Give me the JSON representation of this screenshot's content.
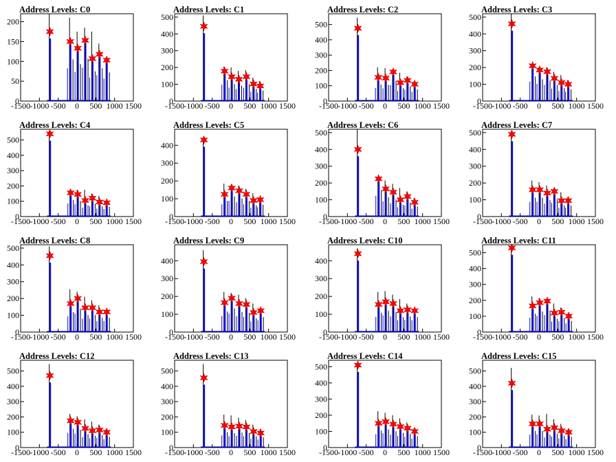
{
  "chart_data": [
    {
      "title": "Address Levels: C0",
      "type": "bar",
      "xlim": [
        -1500,
        1500
      ],
      "ylim": [
        0,
        220
      ],
      "yticks": [
        0,
        50,
        100,
        150,
        200
      ],
      "xticks": [
        "-1500",
        "-1000",
        "-500",
        "0",
        "500",
        "1000",
        "1500"
      ],
      "peaks": [
        {
          "x": -720,
          "y": 175,
          "h": 220
        },
        {
          "x": -180,
          "y": 150,
          "h": 210
        },
        {
          "x": 20,
          "y": 133,
          "h": 175
        },
        {
          "x": 220,
          "y": 153,
          "h": 185
        },
        {
          "x": 410,
          "y": 107,
          "h": 175
        },
        {
          "x": 600,
          "y": 118,
          "h": 145
        },
        {
          "x": 790,
          "y": 103,
          "h": 110
        }
      ]
    },
    {
      "title": "Address Levels: C1",
      "type": "bar",
      "xlim": [
        -1500,
        1500
      ],
      "ylim": [
        0,
        520
      ],
      "yticks": [
        0,
        100,
        200,
        300,
        400,
        500
      ],
      "xticks": [
        "-1500",
        "-1000",
        "-500",
        "0",
        "500",
        "1000",
        "1500"
      ],
      "peaks": [
        {
          "x": -720,
          "y": 445,
          "h": 510
        },
        {
          "x": -170,
          "y": 178,
          "h": 205
        },
        {
          "x": 20,
          "y": 145,
          "h": 200
        },
        {
          "x": 210,
          "y": 130,
          "h": 180
        },
        {
          "x": 410,
          "y": 145,
          "h": 185
        },
        {
          "x": 600,
          "y": 102,
          "h": 140
        },
        {
          "x": 780,
          "y": 90,
          "h": 120
        }
      ]
    },
    {
      "title": "Address Levels: C2",
      "type": "bar",
      "xlim": [
        -1500,
        1500
      ],
      "ylim": [
        0,
        570
      ],
      "yticks": [
        0,
        100,
        200,
        300,
        400,
        500
      ],
      "xticks": [
        "-1500",
        "-1000",
        "-500",
        "0",
        "500",
        "1000",
        "1500"
      ],
      "peaks": [
        {
          "x": -720,
          "y": 475,
          "h": 545
        },
        {
          "x": -180,
          "y": 155,
          "h": 220
        },
        {
          "x": 20,
          "y": 150,
          "h": 215
        },
        {
          "x": 220,
          "y": 190,
          "h": 205
        },
        {
          "x": 410,
          "y": 120,
          "h": 185
        },
        {
          "x": 600,
          "y": 135,
          "h": 160
        },
        {
          "x": 790,
          "y": 110,
          "h": 130
        }
      ]
    },
    {
      "title": "Address Levels: C3",
      "type": "bar",
      "xlim": [
        -1500,
        1500
      ],
      "ylim": [
        0,
        520
      ],
      "yticks": [
        0,
        100,
        200,
        300,
        400,
        500
      ],
      "xticks": [
        "-1500",
        "-1000",
        "-500",
        "0",
        "500",
        "1000",
        "1500"
      ],
      "peaks": [
        {
          "x": -720,
          "y": 460,
          "h": 520
        },
        {
          "x": -170,
          "y": 210,
          "h": 220
        },
        {
          "x": 20,
          "y": 185,
          "h": 205
        },
        {
          "x": 220,
          "y": 175,
          "h": 200
        },
        {
          "x": 410,
          "y": 135,
          "h": 175
        },
        {
          "x": 600,
          "y": 110,
          "h": 155
        },
        {
          "x": 780,
          "y": 100,
          "h": 125
        }
      ]
    },
    {
      "title": "Address Levels: C4",
      "type": "bar",
      "xlim": [
        -1500,
        1500
      ],
      "ylim": [
        0,
        570
      ],
      "yticks": [
        0,
        100,
        200,
        300,
        400,
        500
      ],
      "xticks": [
        "-1500",
        "-1000",
        "-500",
        "0",
        "500",
        "1000",
        "1500"
      ],
      "peaks": [
        {
          "x": -720,
          "y": 540,
          "h": 560
        },
        {
          "x": -170,
          "y": 155,
          "h": 175
        },
        {
          "x": 20,
          "y": 145,
          "h": 175
        },
        {
          "x": 220,
          "y": 105,
          "h": 175
        },
        {
          "x": 410,
          "y": 120,
          "h": 150
        },
        {
          "x": 600,
          "y": 95,
          "h": 135
        },
        {
          "x": 790,
          "y": 90,
          "h": 100
        }
      ]
    },
    {
      "title": "Address Levels: C5",
      "type": "bar",
      "xlim": [
        -1500,
        1500
      ],
      "ylim": [
        0,
        490
      ],
      "yticks": [
        0,
        100,
        200,
        300,
        400
      ],
      "xticks": [
        "-1500",
        "-1000",
        "-500",
        "0",
        "500",
        "1000",
        "1500"
      ],
      "peaks": [
        {
          "x": -720,
          "y": 430,
          "h": 445
        },
        {
          "x": -170,
          "y": 125,
          "h": 185
        },
        {
          "x": 20,
          "y": 160,
          "h": 180
        },
        {
          "x": 220,
          "y": 145,
          "h": 175
        },
        {
          "x": 410,
          "y": 125,
          "h": 155
        },
        {
          "x": 600,
          "y": 90,
          "h": 130
        },
        {
          "x": 780,
          "y": 95,
          "h": 110
        }
      ]
    },
    {
      "title": "Address Levels: C6",
      "type": "bar",
      "xlim": [
        -1500,
        1500
      ],
      "ylim": [
        0,
        520
      ],
      "yticks": [
        0,
        100,
        200,
        300,
        400,
        500
      ],
      "xticks": [
        "-1500",
        "-1000",
        "-500",
        "0",
        "500",
        "1000",
        "1500"
      ],
      "peaks": [
        {
          "x": -720,
          "y": 400,
          "h": 520
        },
        {
          "x": -170,
          "y": 225,
          "h": 235
        },
        {
          "x": 20,
          "y": 165,
          "h": 215
        },
        {
          "x": 220,
          "y": 145,
          "h": 195
        },
        {
          "x": 410,
          "y": 100,
          "h": 170
        },
        {
          "x": 600,
          "y": 120,
          "h": 150
        },
        {
          "x": 790,
          "y": 85,
          "h": 110
        }
      ]
    },
    {
      "title": "Address Levels: C7",
      "type": "bar",
      "xlim": [
        -1500,
        1500
      ],
      "ylim": [
        0,
        520
      ],
      "yticks": [
        0,
        100,
        200,
        300,
        400,
        500
      ],
      "xticks": [
        "-1500",
        "-1000",
        "-500",
        "0",
        "500",
        "1000",
        "1500"
      ],
      "peaks": [
        {
          "x": -720,
          "y": 490,
          "h": 510
        },
        {
          "x": -170,
          "y": 160,
          "h": 215
        },
        {
          "x": 20,
          "y": 160,
          "h": 205
        },
        {
          "x": 220,
          "y": 140,
          "h": 185
        },
        {
          "x": 410,
          "y": 150,
          "h": 170
        },
        {
          "x": 600,
          "y": 95,
          "h": 145
        },
        {
          "x": 780,
          "y": 95,
          "h": 115
        }
      ]
    },
    {
      "title": "Address Levels: C8",
      "type": "bar",
      "xlim": [
        -1500,
        1500
      ],
      "ylim": [
        0,
        520
      ],
      "yticks": [
        0,
        100,
        200,
        300,
        400,
        500
      ],
      "xticks": [
        "-1500",
        "-1000",
        "-500",
        "0",
        "500",
        "1000",
        "1500"
      ],
      "peaks": [
        {
          "x": -720,
          "y": 455,
          "h": 510
        },
        {
          "x": -170,
          "y": 170,
          "h": 255
        },
        {
          "x": 20,
          "y": 200,
          "h": 240
        },
        {
          "x": 220,
          "y": 145,
          "h": 210
        },
        {
          "x": 410,
          "y": 145,
          "h": 190
        },
        {
          "x": 600,
          "y": 120,
          "h": 160
        },
        {
          "x": 790,
          "y": 120,
          "h": 125
        }
      ]
    },
    {
      "title": "Address Levels: C9",
      "type": "bar",
      "xlim": [
        -1500,
        1500
      ],
      "ylim": [
        0,
        490
      ],
      "yticks": [
        0,
        100,
        200,
        300,
        400
      ],
      "xticks": [
        "-1500",
        "-1000",
        "-500",
        "0",
        "500",
        "1000",
        "1500"
      ],
      "peaks": [
        {
          "x": -720,
          "y": 395,
          "h": 460
        },
        {
          "x": -170,
          "y": 165,
          "h": 225
        },
        {
          "x": 20,
          "y": 190,
          "h": 220
        },
        {
          "x": 220,
          "y": 160,
          "h": 210
        },
        {
          "x": 410,
          "y": 155,
          "h": 190
        },
        {
          "x": 600,
          "y": 110,
          "h": 160
        },
        {
          "x": 790,
          "y": 120,
          "h": 125
        }
      ]
    },
    {
      "title": "Address Levels: C10",
      "type": "bar",
      "xlim": [
        -1500,
        1500
      ],
      "ylim": [
        0,
        490
      ],
      "yticks": [
        0,
        100,
        200,
        300,
        400
      ],
      "xticks": [
        "-1500",
        "-1000",
        "-500",
        "0",
        "500",
        "1000",
        "1500"
      ],
      "peaks": [
        {
          "x": -720,
          "y": 440,
          "h": 470
        },
        {
          "x": -170,
          "y": 155,
          "h": 225
        },
        {
          "x": 20,
          "y": 170,
          "h": 230
        },
        {
          "x": 220,
          "y": 160,
          "h": 210
        },
        {
          "x": 410,
          "y": 120,
          "h": 185
        },
        {
          "x": 600,
          "y": 125,
          "h": 160
        },
        {
          "x": 790,
          "y": 120,
          "h": 130
        }
      ]
    },
    {
      "title": "Address Levels: C11",
      "type": "bar",
      "xlim": [
        -1500,
        1500
      ],
      "ylim": [
        0,
        550
      ],
      "yticks": [
        0,
        100,
        200,
        300,
        400,
        500
      ],
      "xticks": [
        "-1500",
        "-1000",
        "-500",
        "0",
        "500",
        "1000",
        "1500"
      ],
      "peaks": [
        {
          "x": -720,
          "y": 530,
          "h": 550
        },
        {
          "x": -170,
          "y": 165,
          "h": 225
        },
        {
          "x": 20,
          "y": 185,
          "h": 215
        },
        {
          "x": 220,
          "y": 195,
          "h": 205
        },
        {
          "x": 410,
          "y": 120,
          "h": 180
        },
        {
          "x": 600,
          "y": 125,
          "h": 155
        },
        {
          "x": 790,
          "y": 100,
          "h": 120
        }
      ]
    },
    {
      "title": "Address Levels: C12",
      "type": "bar",
      "xlim": [
        -1500,
        1500
      ],
      "ylim": [
        0,
        570
      ],
      "yticks": [
        0,
        100,
        200,
        300,
        400,
        500
      ],
      "xticks": [
        "-1500",
        "-1000",
        "-500",
        "0",
        "500",
        "1000",
        "1500"
      ],
      "peaks": [
        {
          "x": -720,
          "y": 470,
          "h": 545
        },
        {
          "x": -170,
          "y": 175,
          "h": 220
        },
        {
          "x": 20,
          "y": 165,
          "h": 205
        },
        {
          "x": 220,
          "y": 125,
          "h": 185
        },
        {
          "x": 410,
          "y": 110,
          "h": 170
        },
        {
          "x": 600,
          "y": 115,
          "h": 150
        },
        {
          "x": 790,
          "y": 100,
          "h": 120
        }
      ]
    },
    {
      "title": "Address Levels: C13",
      "type": "bar",
      "xlim": [
        -1500,
        1500
      ],
      "ylim": [
        0,
        570
      ],
      "yticks": [
        0,
        100,
        200,
        300,
        400,
        500
      ],
      "xticks": [
        "-1500",
        "-1000",
        "-500",
        "0",
        "500",
        "1000",
        "1500"
      ],
      "peaks": [
        {
          "x": -720,
          "y": 455,
          "h": 545
        },
        {
          "x": -170,
          "y": 145,
          "h": 215
        },
        {
          "x": 20,
          "y": 135,
          "h": 210
        },
        {
          "x": 220,
          "y": 140,
          "h": 195
        },
        {
          "x": 410,
          "y": 135,
          "h": 180
        },
        {
          "x": 600,
          "y": 105,
          "h": 150
        },
        {
          "x": 790,
          "y": 95,
          "h": 120
        }
      ]
    },
    {
      "title": "Address Levels: C14",
      "type": "bar",
      "xlim": [
        -1500,
        1500
      ],
      "ylim": [
        0,
        540
      ],
      "yticks": [
        0,
        100,
        200,
        300,
        400,
        500
      ],
      "xticks": [
        "-1500",
        "-1000",
        "-500",
        "0",
        "500",
        "1000",
        "1500"
      ],
      "peaks": [
        {
          "x": -720,
          "y": 510,
          "h": 525
        },
        {
          "x": -170,
          "y": 150,
          "h": 225
        },
        {
          "x": 20,
          "y": 160,
          "h": 215
        },
        {
          "x": 220,
          "y": 145,
          "h": 200
        },
        {
          "x": 410,
          "y": 130,
          "h": 180
        },
        {
          "x": 600,
          "y": 120,
          "h": 155
        },
        {
          "x": 790,
          "y": 100,
          "h": 120
        }
      ]
    },
    {
      "title": "Address Levels: C15",
      "type": "bar",
      "xlim": [
        -1500,
        1500
      ],
      "ylim": [
        0,
        570
      ],
      "yticks": [
        0,
        100,
        200,
        300,
        400,
        500
      ],
      "xticks": [
        "-1500",
        "-1000",
        "-500",
        "0",
        "500",
        "1000",
        "1500"
      ],
      "peaks": [
        {
          "x": -720,
          "y": 420,
          "h": 520
        },
        {
          "x": -170,
          "y": 155,
          "h": 215
        },
        {
          "x": 20,
          "y": 155,
          "h": 210
        },
        {
          "x": 220,
          "y": 120,
          "h": 220
        },
        {
          "x": 410,
          "y": 130,
          "h": 185
        },
        {
          "x": 600,
          "y": 110,
          "h": 155
        },
        {
          "x": 790,
          "y": 100,
          "h": 120
        }
      ]
    }
  ],
  "colors": {
    "histogram_line": "#0000ff",
    "histogram_spike": "#000000",
    "marker": "#ff0000",
    "axis": "#000000"
  },
  "marker_icon": "red-star-marker-icon"
}
